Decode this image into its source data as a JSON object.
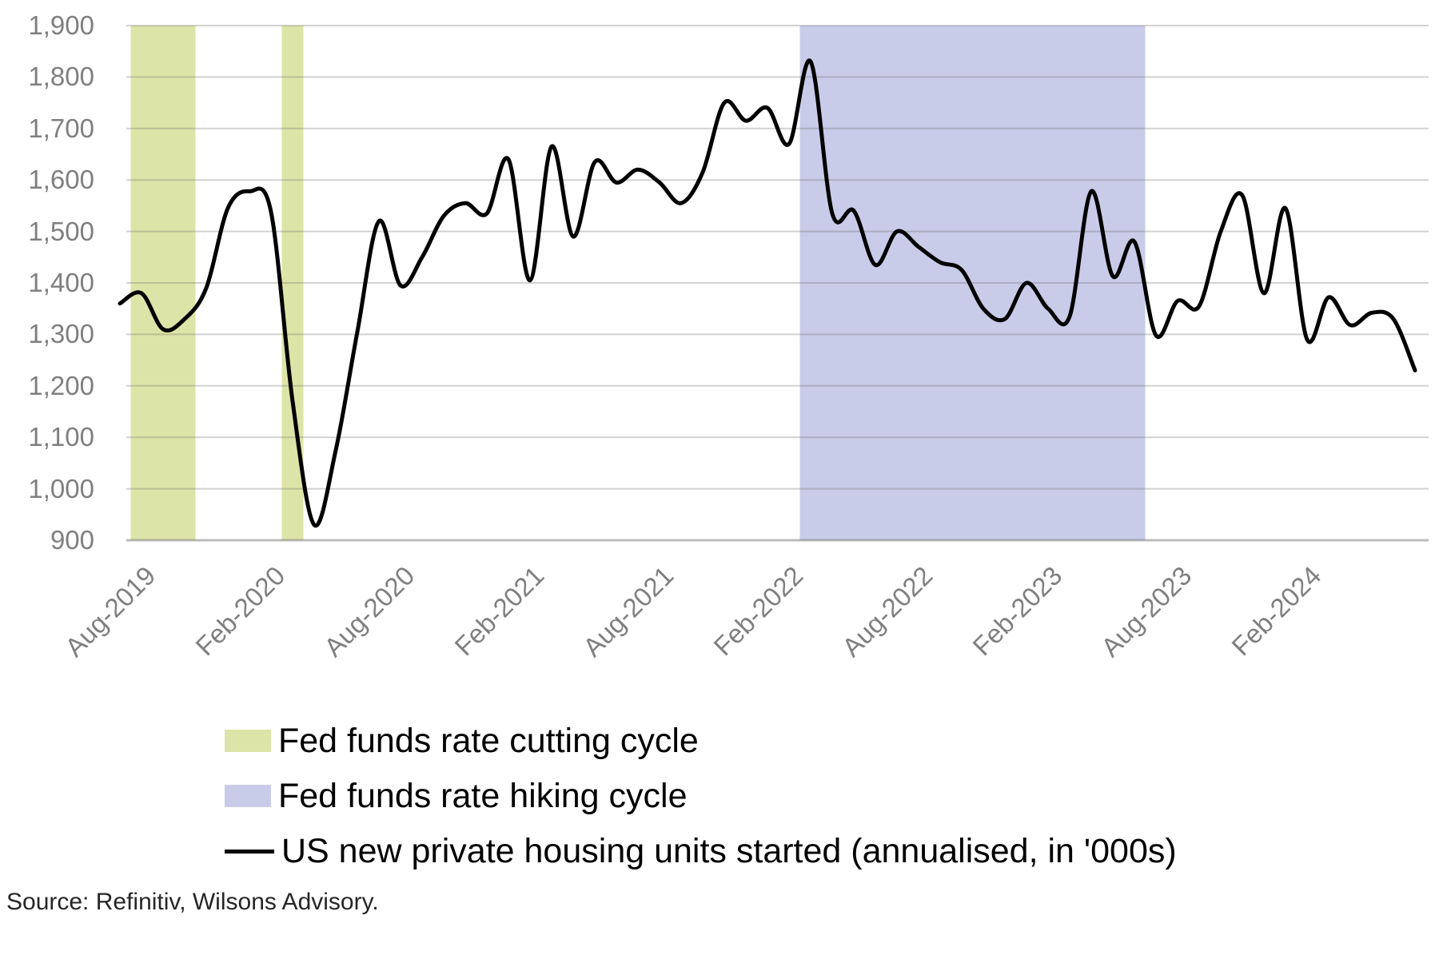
{
  "source_note": "Source: Refinitiv, Wilsons Advisory.",
  "colors": {
    "cutting_band": "#dde4a7",
    "hiking_band": "#c8cce9",
    "series_line": "#000000",
    "gridline": "rgba(105,105,105,0.30)",
    "axis_line": "rgba(105,105,105,0.45)",
    "axis_text": "#7f7f7f",
    "legend_text": "#000000"
  },
  "legend": {
    "cutting_label": "Fed funds rate cutting cycle",
    "hiking_label": "Fed funds rate hiking cycle",
    "series_label": "US new private housing units started (annualised, in '000s)"
  },
  "chart_data": {
    "type": "line",
    "title": "",
    "xlabel": "",
    "ylabel": "",
    "ylim": [
      900,
      1900
    ],
    "grid": "horizontal",
    "legend_position": "bottom-left",
    "series_name": "US new private housing units started (annualised, in '000s)",
    "x": [
      "Aug-2019",
      "Sep-2019",
      "Oct-2019",
      "Nov-2019",
      "Dec-2019",
      "Jan-2020",
      "Feb-2020",
      "Mar-2020",
      "Apr-2020",
      "May-2020",
      "Jun-2020",
      "Jul-2020",
      "Aug-2020",
      "Sep-2020",
      "Oct-2020",
      "Nov-2020",
      "Dec-2020",
      "Jan-2021",
      "Feb-2021",
      "Mar-2021",
      "Apr-2021",
      "May-2021",
      "Jun-2021",
      "Jul-2021",
      "Aug-2021",
      "Sep-2021",
      "Oct-2021",
      "Nov-2021",
      "Dec-2021",
      "Jan-2022",
      "Feb-2022",
      "Mar-2022",
      "Apr-2022",
      "May-2022",
      "Jun-2022",
      "Jul-2022",
      "Aug-2022",
      "Sep-2022",
      "Oct-2022",
      "Nov-2022",
      "Dec-2022",
      "Jan-2023",
      "Feb-2023",
      "Mar-2023",
      "Apr-2023",
      "May-2023",
      "Jun-2023",
      "Jul-2023",
      "Aug-2023",
      "Sep-2023",
      "Oct-2023",
      "Nov-2023",
      "Dec-2023",
      "Jan-2024",
      "Feb-2024",
      "Mar-2024",
      "Apr-2024",
      "May-2024",
      "Jun-2024",
      "Jul-2024",
      "Aug-2024"
    ],
    "values": [
      1360,
      1380,
      1310,
      1330,
      1390,
      1545,
      1578,
      1538,
      1170,
      930,
      1075,
      1305,
      1520,
      1395,
      1450,
      1530,
      1555,
      1535,
      1640,
      1405,
      1665,
      1490,
      1635,
      1595,
      1620,
      1595,
      1555,
      1615,
      1750,
      1715,
      1740,
      1670,
      1830,
      1535,
      1540,
      1435,
      1500,
      1470,
      1440,
      1425,
      1350,
      1330,
      1400,
      1350,
      1335,
      1578,
      1413,
      1480,
      1298,
      1365,
      1355,
      1500,
      1570,
      1380,
      1545,
      1290,
      1372,
      1318,
      1342,
      1330,
      1230
    ],
    "y_ticks": [
      {
        "label": "1,900",
        "value": 1900
      },
      {
        "label": "1,800",
        "value": 1800
      },
      {
        "label": "1,700",
        "value": 1700
      },
      {
        "label": "1,600",
        "value": 1600
      },
      {
        "label": "1,500",
        "value": 1500
      },
      {
        "label": "1,400",
        "value": 1400
      },
      {
        "label": "1,300",
        "value": 1300
      },
      {
        "label": "1,200",
        "value": 1200
      },
      {
        "label": "1,100",
        "value": 1100
      },
      {
        "label": "1,000",
        "value": 1000
      },
      {
        "label": "900",
        "value": 900
      }
    ],
    "x_ticks": [
      {
        "label": "Aug-2019",
        "index": 0
      },
      {
        "label": "Feb-2020",
        "index": 6
      },
      {
        "label": "Aug-2020",
        "index": 12
      },
      {
        "label": "Feb-2021",
        "index": 18
      },
      {
        "label": "Aug-2021",
        "index": 24
      },
      {
        "label": "Feb-2022",
        "index": 30
      },
      {
        "label": "Aug-2022",
        "index": 36
      },
      {
        "label": "Feb-2023",
        "index": 42
      },
      {
        "label": "Aug-2023",
        "index": 48
      },
      {
        "label": "Feb-2024",
        "index": 54
      }
    ],
    "bands": [
      {
        "name": "fed-cutting-cycle-2019",
        "label": "Fed funds rate cutting cycle",
        "period": "Aug-2019 to Oct-2019",
        "from_index": 0.5,
        "to_index": 3.5,
        "color": "#dde4a7"
      },
      {
        "name": "fed-cutting-cycle-2020",
        "label": "Fed funds rate cutting cycle",
        "period": "Mar-2020",
        "from_index": 7.5,
        "to_index": 8.5,
        "color": "#dde4a7"
      },
      {
        "name": "fed-hiking-cycle",
        "label": "Fed funds rate hiking cycle",
        "period": "Mar-2022 to Jul-2023",
        "from_index": 31.5,
        "to_index": 47.5,
        "color": "#c8cce9"
      }
    ]
  }
}
